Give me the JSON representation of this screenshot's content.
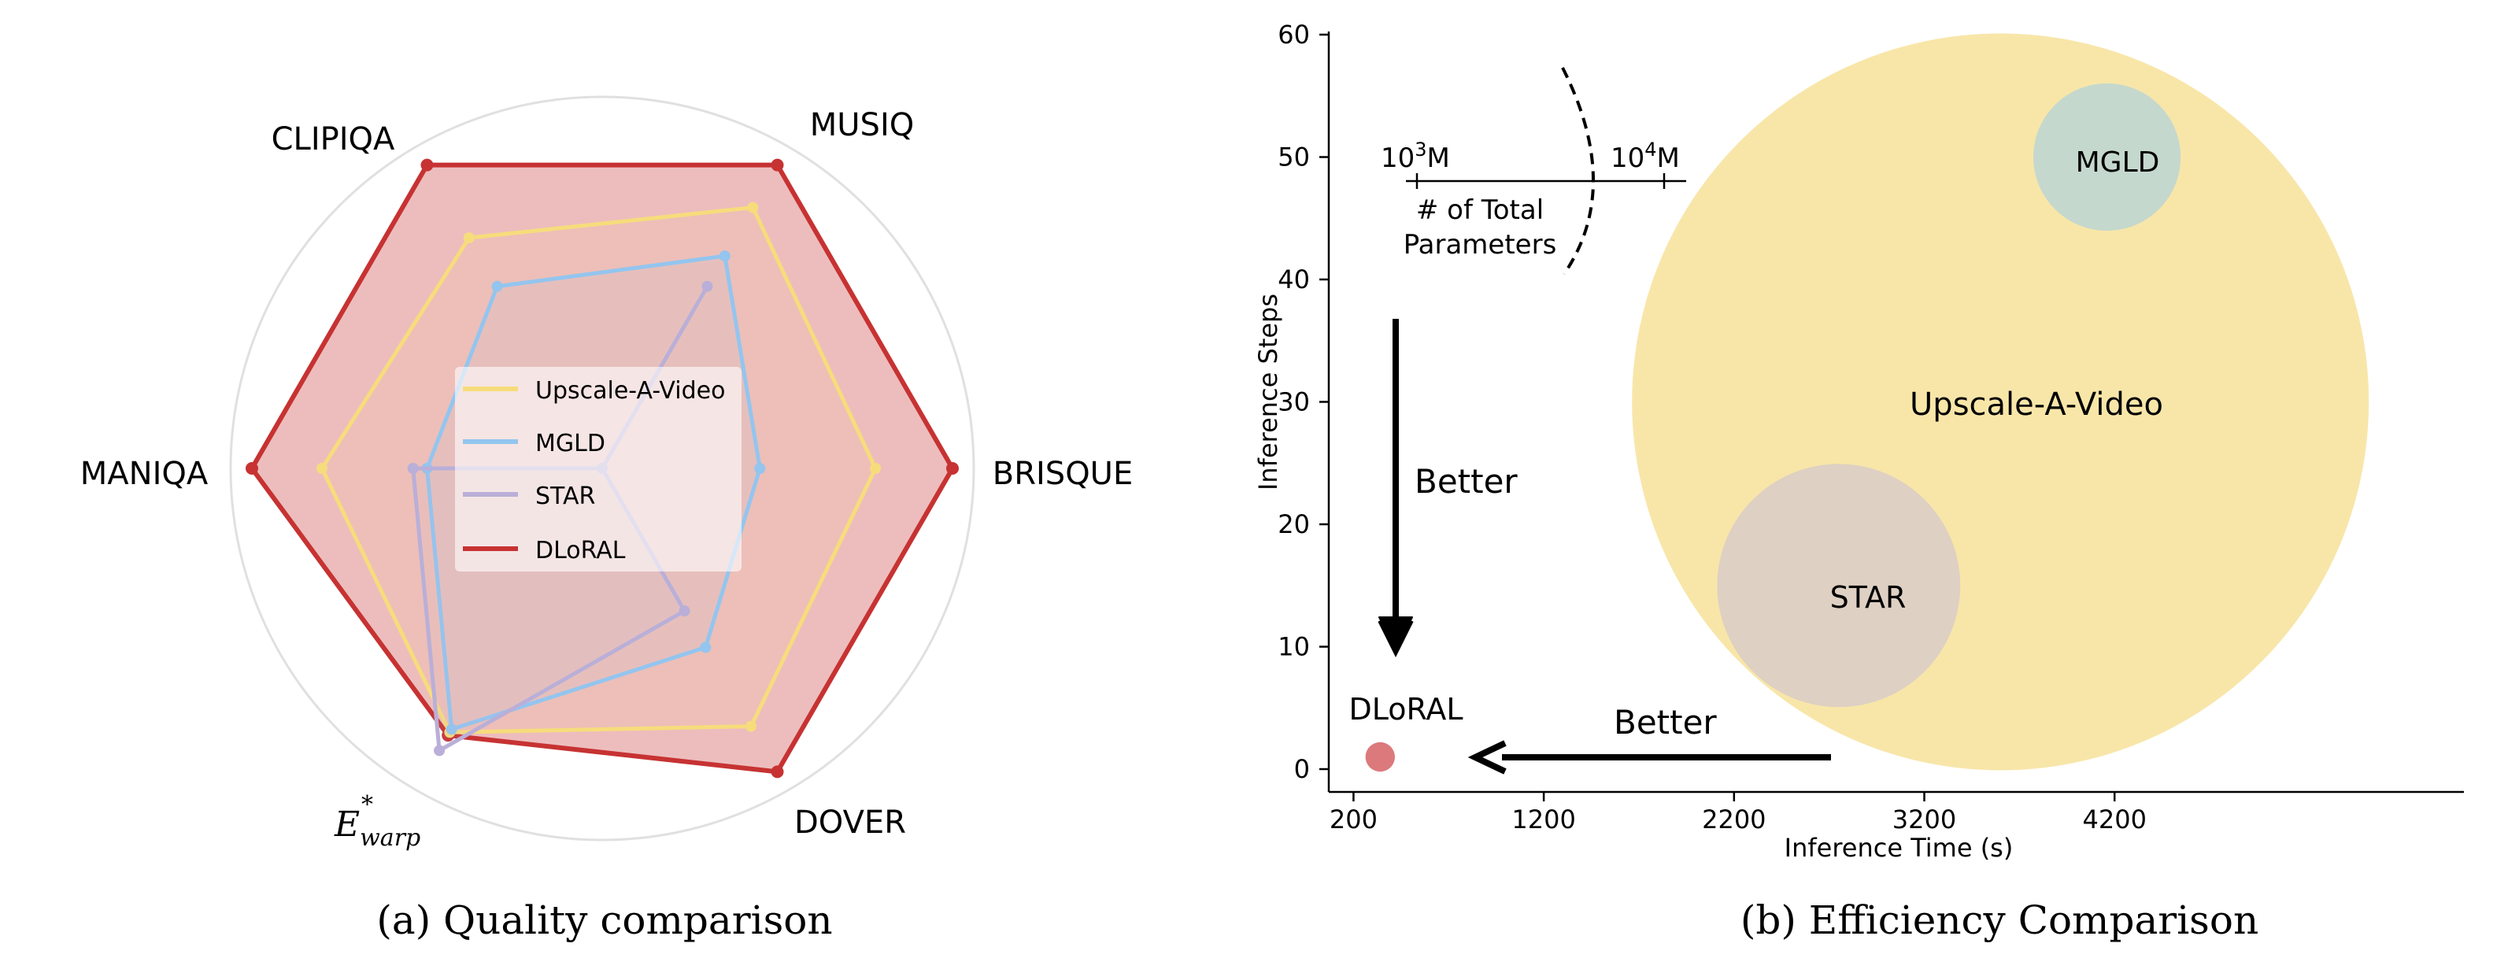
{
  "chart_data": [
    {
      "type": "radar",
      "caption": "(a) Quality comparison",
      "axes": [
        "MUSIQ",
        "BRISQUE",
        "DOVER",
        "E*warp",
        "MANIQA",
        "CLIPIQA"
      ],
      "axis_label_parts": {
        "warp_main": "E",
        "warp_sup": "*",
        "warp_sub": "warp"
      },
      "rmax": 1.0,
      "series": [
        {
          "name": "Upscale-A-Video",
          "color": "#f7dc7c",
          "values": [
            0.86,
            0.78,
            0.85,
            0.87,
            0.8,
            0.76
          ]
        },
        {
          "name": "MGLD",
          "color": "#93c5ef",
          "values": [
            0.7,
            0.45,
            0.59,
            0.86,
            0.5,
            0.6
          ]
        },
        {
          "name": "STAR",
          "color": "#b9afd8",
          "values": [
            0.6,
            0.0,
            0.47,
            0.93,
            0.54,
            0.0
          ]
        },
        {
          "name": "DLoRAL",
          "color": "#c73232",
          "values": [
            1.0,
            1.0,
            1.0,
            0.88,
            1.0,
            1.0
          ]
        }
      ]
    },
    {
      "type": "bubble",
      "caption": "(b) Efficiency Comparison",
      "xlabel": "Inference Time (s)",
      "ylabel": "Inference Steps",
      "x_ticks": [
        200,
        1200,
        2200,
        3200,
        4200
      ],
      "y_ticks": [
        0,
        10,
        20,
        30,
        40,
        50,
        60
      ],
      "xlim": [
        70,
        6000
      ],
      "ylim": [
        -2,
        60
      ],
      "points": [
        {
          "name": "Upscale-A-Video",
          "x": 3600,
          "y": 30,
          "size": 1.0,
          "color": "#f5dd8c"
        },
        {
          "name": "MGLD",
          "x": 4160,
          "y": 50,
          "size": 0.2,
          "color": "#b4d3da"
        },
        {
          "name": "STAR",
          "x": 2750,
          "y": 15,
          "size": 0.33,
          "color": "#d6c8cc"
        },
        {
          "name": "DLoRAL",
          "x": 340,
          "y": 1,
          "size": 0.04,
          "color": "#d86a6e"
        }
      ],
      "annotations": {
        "better_vertical": "Better",
        "better_horizontal": "Better"
      },
      "params_legend": {
        "label_line1": "# of Total",
        "label_line2": "Parameters",
        "left_base": "10",
        "left_exp": "3",
        "right_base": "10",
        "right_exp": "4",
        "unit": "M"
      }
    }
  ]
}
